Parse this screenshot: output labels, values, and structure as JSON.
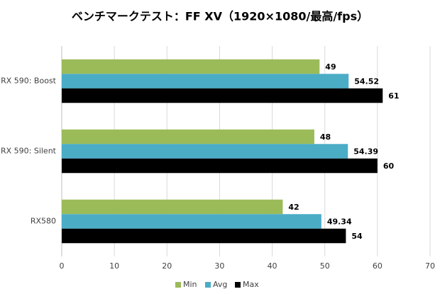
{
  "chart_data": {
    "type": "bar",
    "orientation": "horizontal",
    "title": "ベンチマークテスト：FF XV（1920×1080/最高/fps）",
    "categories": [
      "RX 590: Boost",
      "RX 590: Silent",
      "RX580"
    ],
    "series": [
      {
        "name": "Min",
        "color": "#9bbb59",
        "values": [
          49,
          48,
          42
        ]
      },
      {
        "name": "Avg",
        "color": "#4bacc6",
        "values": [
          54.52,
          54.39,
          49.34
        ]
      },
      {
        "name": "Max",
        "color": "#000000",
        "values": [
          61,
          60,
          54
        ]
      }
    ],
    "xlim": [
      0,
      70
    ],
    "xticks": [
      0,
      10,
      20,
      30,
      40,
      50,
      60,
      70
    ],
    "grid": true,
    "legend": "bottom"
  }
}
